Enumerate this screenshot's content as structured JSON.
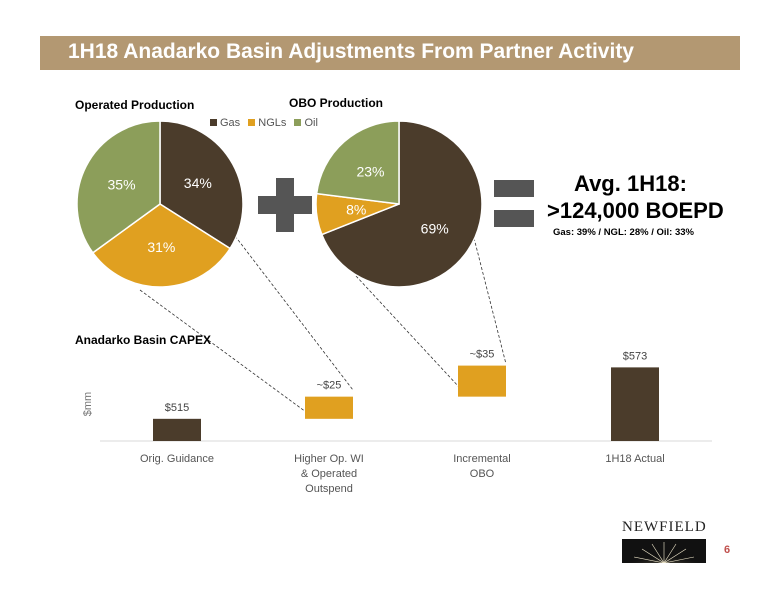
{
  "slide": {
    "title": "1H18 Anadarko Basin Adjustments From Partner Activity",
    "page_number": "6",
    "logo_text": "NEWFIELD"
  },
  "colors": {
    "banner": "#b39872",
    "gas": "#4b3c2b",
    "ngls": "#e0a020",
    "oil": "#8c9e5a",
    "bar_dark": "#4b3c2b",
    "bar_gold": "#e0a020"
  },
  "legend": [
    {
      "label": "Gas",
      "color": "#4b3c2b"
    },
    {
      "label": "NGLs",
      "color": "#e0a020"
    },
    {
      "label": "Oil",
      "color": "#8c9e5a"
    }
  ],
  "summary": {
    "title": "Avg. 1H18:",
    "value": ">124,000 BOEPD",
    "mix": "Gas: 39% / NGL: 28% / Oil: 33%"
  },
  "chart_data": [
    {
      "type": "pie",
      "title": "Operated Production",
      "slices": [
        {
          "name": "Gas",
          "value": 34,
          "label": "34%"
        },
        {
          "name": "NGLs",
          "value": 31,
          "label": "31%"
        },
        {
          "name": "Oil",
          "value": 35,
          "label": "35%"
        }
      ]
    },
    {
      "type": "pie",
      "title": "OBO Production",
      "slices": [
        {
          "name": "Gas",
          "value": 69,
          "label": "69%"
        },
        {
          "name": "NGLs",
          "value": 8,
          "label": "8%"
        },
        {
          "name": "Oil",
          "value": 23,
          "label": "23%"
        }
      ]
    },
    {
      "type": "bar",
      "subtype": "waterfall",
      "title": "Anadarko Basin CAPEX",
      "ylabel": "$mm",
      "categories": [
        "Orig. Guidance",
        "Higher Op. WI & Operated Outspend",
        "Incremental OBO",
        "1H18 Actual"
      ],
      "category_lines": [
        [
          "Orig. Guidance"
        ],
        [
          "Higher Op. WI",
          "& Operated",
          "Outspend"
        ],
        [
          "Incremental",
          "OBO"
        ],
        [
          "1H18 Actual"
        ]
      ],
      "values": [
        515,
        25,
        35,
        573
      ],
      "kinds": [
        "total",
        "increment",
        "increment",
        "total"
      ],
      "data_labels": [
        "$515",
        "~$25",
        "~$35",
        "$573"
      ]
    }
  ]
}
